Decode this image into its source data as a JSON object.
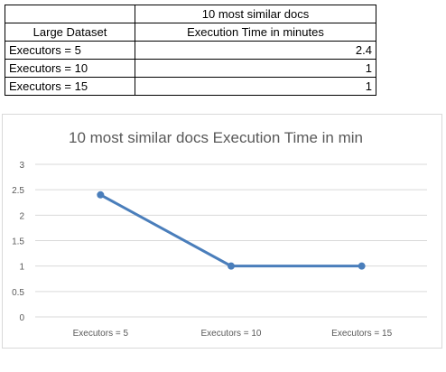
{
  "table": {
    "title": "10 most similar docs",
    "header": [
      "Large Dataset",
      "Execution Time in minutes"
    ],
    "rows": [
      [
        "Executors = 5",
        "2.4"
      ],
      [
        "Executors = 10",
        "1"
      ],
      [
        "Executors = 15",
        "1"
      ]
    ]
  },
  "chart_data": {
    "type": "line",
    "title": "10 most similar docs Execution Time in min",
    "categories": [
      "Executors = 5",
      "Executors = 10",
      "Executors = 15"
    ],
    "series": [
      {
        "values": [
          2.4,
          1,
          1
        ],
        "color": "#4a7ebb"
      }
    ],
    "ylim": [
      0,
      3
    ],
    "yticks": [
      0,
      0.5,
      1,
      1.5,
      2,
      2.5,
      3
    ],
    "ytick_labels": [
      "0",
      "0.5",
      "1",
      "1.5",
      "2",
      "2.5",
      "3"
    ],
    "grid": true,
    "legend": "none"
  }
}
